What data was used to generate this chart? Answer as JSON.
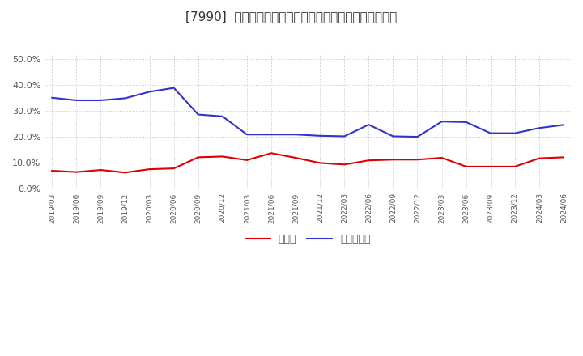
{
  "title": "[7990]  現須金、有利子負債の総資産に対する比率の推移",
  "x_labels": [
    "2019/03",
    "2019/06",
    "2019/09",
    "2019/12",
    "2020/03",
    "2020/06",
    "2020/09",
    "2020/12",
    "2021/03",
    "2021/06",
    "2021/09",
    "2021/12",
    "2022/03",
    "2022/06",
    "2022/09",
    "2022/12",
    "2023/03",
    "2023/06",
    "2023/09",
    "2023/12",
    "2024/03",
    "2024/06"
  ],
  "cash": [
    0.07,
    0.065,
    0.073,
    0.063,
    0.076,
    0.079,
    0.122,
    0.125,
    0.111,
    0.138,
    0.12,
    0.1,
    0.094,
    0.11,
    0.113,
    0.113,
    0.12,
    0.086,
    0.086,
    0.086,
    0.118,
    0.122
  ],
  "debt": [
    0.352,
    0.342,
    0.342,
    0.35,
    0.375,
    0.39,
    0.287,
    0.28,
    0.21,
    0.21,
    0.21,
    0.205,
    0.203,
    0.248,
    0.203,
    0.201,
    0.26,
    0.258,
    0.215,
    0.215,
    0.235,
    0.247
  ],
  "cash_color": "#dd0000",
  "debt_color": "#3333cc",
  "background_color": "#ffffff",
  "grid_color": "#bbbbbb",
  "ylim": [
    0.0,
    0.52
  ],
  "yticks": [
    0.0,
    0.1,
    0.2,
    0.3,
    0.4,
    0.5
  ],
  "legend_cash": "現須金",
  "legend_debt": "有利子負債",
  "title_fontsize": 11
}
